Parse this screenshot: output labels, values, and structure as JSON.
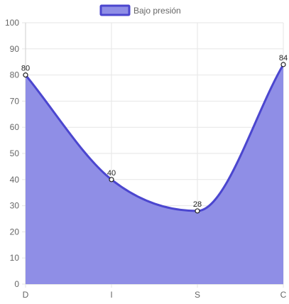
{
  "chart_data": {
    "type": "area",
    "categories": [
      "D",
      "I",
      "S",
      "C"
    ],
    "series": [
      {
        "name": "Bajo presión",
        "values": [
          80,
          40,
          28,
          84
        ]
      }
    ],
    "ylim": [
      0,
      100
    ],
    "yticks": [
      0,
      10,
      20,
      30,
      40,
      50,
      60,
      70,
      80,
      90,
      100
    ],
    "grid": true,
    "legend": "top-center",
    "data_labels": true,
    "colors": {
      "fill": "#8f8ee6",
      "line": "#4b46cf",
      "grid": "#e6e6e6",
      "point_fill": "#ffffff"
    }
  }
}
